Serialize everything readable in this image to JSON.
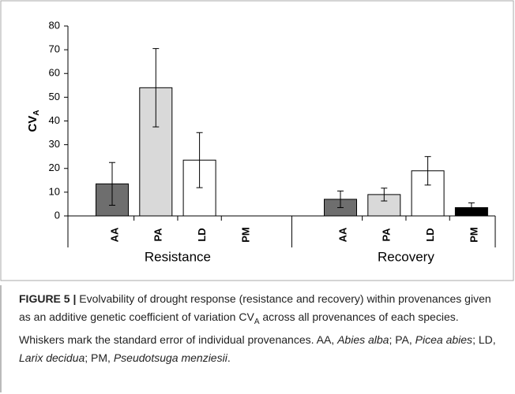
{
  "chart_data": {
    "type": "bar",
    "ylabel": {
      "text": "CV",
      "sub": "A"
    },
    "categories": [
      "Resistance",
      "Recovery"
    ],
    "series": [
      {
        "name": "AA",
        "color": "#6e6e6e",
        "values": [
          13.5,
          7
        ],
        "errors": [
          9,
          3.5
        ]
      },
      {
        "name": "PA",
        "color": "#d9d9d9",
        "values": [
          54,
          9
        ],
        "errors": [
          16.5,
          2.7
        ]
      },
      {
        "name": "LD",
        "color": "#ffffff",
        "values": [
          23.5,
          19
        ],
        "errors": [
          11.6,
          6
        ]
      },
      {
        "name": "PM",
        "color": "#000000",
        "values": [
          0,
          3.5
        ],
        "errors": [
          null,
          2
        ]
      }
    ],
    "ylim": [
      0,
      80
    ],
    "yticks": [
      0,
      10,
      20,
      30,
      40,
      50,
      60,
      70,
      80
    ]
  },
  "caption": [
    {
      "text": "FIGURE 5 |",
      "style": "bold"
    },
    {
      "text": " Evolvability of drought response (resistance and recovery) within provenances given as an additive genetic coefficient of variation CV",
      "style": "normal"
    },
    {
      "text": "A",
      "style": "sub"
    },
    {
      "text": " across all provenances of each species. Whiskers mark the standard error of individual provenances. AA, ",
      "style": "normal"
    },
    {
      "text": "Abies alba",
      "style": "italic"
    },
    {
      "text": "; PA, ",
      "style": "normal"
    },
    {
      "text": "Picea abies",
      "style": "italic"
    },
    {
      "text": "; LD, ",
      "style": "normal"
    },
    {
      "text": "Larix decidua",
      "style": "italic"
    },
    {
      "text": "; PM, ",
      "style": "normal"
    },
    {
      "text": "Pseudotsuga menziesii",
      "style": "italic"
    },
    {
      "text": ".",
      "style": "normal"
    }
  ]
}
